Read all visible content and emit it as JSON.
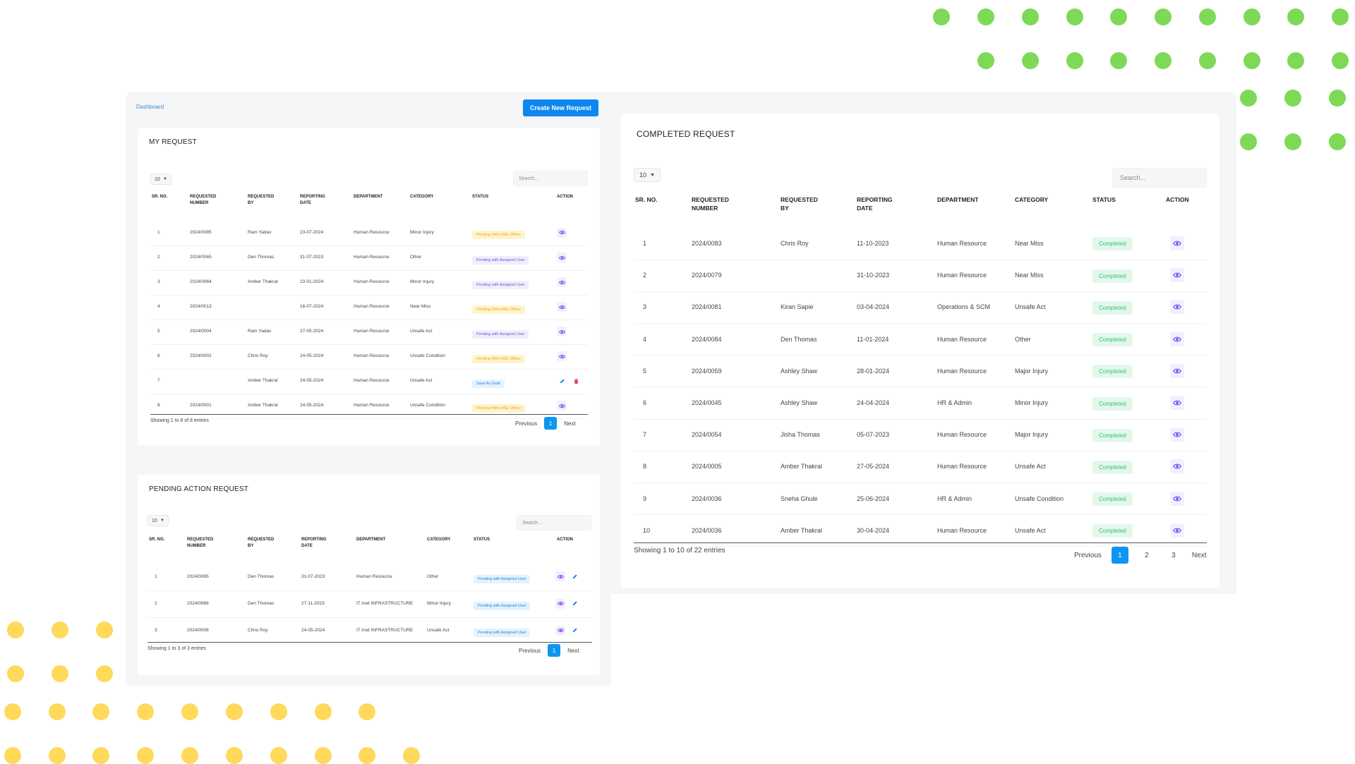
{
  "breadcrumb": "Dashboard",
  "create_button": "Create New Request",
  "colors": {
    "accent": "#0d86f0",
    "green_dot": "#7ed957",
    "yellow_dot": "#ffd95a"
  },
  "my_request": {
    "title": "MY REQUEST",
    "length": "10",
    "search_placeholder": "Search...",
    "columns": [
      "SR. NO.",
      "REQUESTED NUMBER",
      "REQUESTED BY",
      "REPORTING DATE",
      "DEPARTMENT",
      "CATEGORY",
      "STATUS",
      "ACTION"
    ],
    "rows": [
      {
        "sr": "1",
        "num": "2024/0085",
        "by": "Ram Yadav",
        "date": "23-07-2024",
        "dept": "Human Resource",
        "cat": "Minor Injury",
        "status": "Pending With HSE Officer",
        "stype": "hse",
        "actions": [
          "view"
        ]
      },
      {
        "sr": "2",
        "num": "2024/0065",
        "by": "Den Thomas",
        "date": "31-07-2023",
        "dept": "Human Resource",
        "cat": "Other",
        "status": "Pending with Assigned User",
        "stype": "assigned",
        "actions": [
          "view"
        ]
      },
      {
        "sr": "3",
        "num": "2024/0064",
        "by": "Amber Thakral",
        "date": "23-01-2024",
        "dept": "Human Resource",
        "cat": "Minor Injury",
        "status": "Pending with Assigned User",
        "stype": "assigned",
        "actions": [
          "view"
        ]
      },
      {
        "sr": "4",
        "num": "2024/0013",
        "by": "",
        "date": "16-07-2024",
        "dept": "Human Resource",
        "cat": "Near Miss",
        "status": "Pending With HSE Officer",
        "stype": "hse",
        "actions": [
          "view"
        ]
      },
      {
        "sr": "5",
        "num": "2024/0004",
        "by": "Ram Yadav",
        "date": "27-05-2024",
        "dept": "Human Resource",
        "cat": "Unsafe Act",
        "status": "Pending with Assigned User",
        "stype": "assigned",
        "actions": [
          "view"
        ]
      },
      {
        "sr": "6",
        "num": "2024/0002",
        "by": "Chris Roy",
        "date": "24-05-2024",
        "dept": "Human Resource",
        "cat": "Unsafe Condition",
        "status": "Pending With HSE Officer",
        "stype": "hse",
        "actions": [
          "view"
        ]
      },
      {
        "sr": "7",
        "num": "",
        "by": "Amber Thakral",
        "date": "24-05-2024",
        "dept": "Human Resource",
        "cat": "Unsafe Act",
        "status": "Save As Draft",
        "stype": "draft",
        "actions": [
          "edit",
          "delete"
        ]
      },
      {
        "sr": "8",
        "num": "2024/0001",
        "by": "Amber Thakral",
        "date": "24-05-2024",
        "dept": "Human Resource",
        "cat": "Unsafe Condition",
        "status": "Pending With HSE Officer",
        "stype": "hse",
        "actions": [
          "view"
        ]
      }
    ],
    "info": "Showing 1 to 8 of 8 entries",
    "prev": "Previous",
    "next": "Next",
    "pages": [
      "1"
    ]
  },
  "pending": {
    "title": "PENDING ACTION REQUEST",
    "length": "10",
    "search_placeholder": "Search...",
    "columns": [
      "SR. NO.",
      "REQUESTED NUMBER",
      "REQUESTED BY",
      "REPORTING DATE",
      "DEPARTMENT",
      "CATEGORY",
      "STATUS",
      "ACTION"
    ],
    "rows": [
      {
        "sr": "1",
        "num": "2024/0065",
        "by": "Den Thomas",
        "date": "31-07-2023",
        "dept": "Human Resource",
        "cat": "Other",
        "status": "Pending with Assigned User",
        "stype": "draft",
        "actions": [
          "view",
          "edit"
        ]
      },
      {
        "sr": "2",
        "num": "2024/0066",
        "by": "Den Thomas",
        "date": "27-11-2023",
        "dept": "IT And INFRASTRUCTURE",
        "cat": "Minor Injury",
        "status": "Pending with Assigned User",
        "stype": "draft",
        "actions": [
          "view",
          "edit"
        ]
      },
      {
        "sr": "3",
        "num": "2024/0008",
        "by": "Chris Roy",
        "date": "24-05-2024",
        "dept": "IT And INFRASTRUCTURE",
        "cat": "Unsafe Act",
        "status": "Pending with Assigned User",
        "stype": "draft",
        "actions": [
          "view",
          "edit"
        ]
      }
    ],
    "info": "Showing 1 to 3 of 3 entries",
    "prev": "Previous",
    "next": "Next",
    "pages": [
      "1"
    ]
  },
  "completed": {
    "title": "COMPLETED REQUEST",
    "length": "10",
    "search_placeholder": "Search...",
    "columns": [
      "SR. NO.",
      "REQUESTED NUMBER",
      "REQUESTED BY",
      "REPORTING DATE",
      "DEPARTMENT",
      "CATEGORY",
      "STATUS",
      "ACTION"
    ],
    "rows": [
      {
        "sr": "1",
        "num": "2024/0083",
        "by": "Chris Roy",
        "date": "11-10-2023",
        "dept": "Human Resource",
        "cat": "Near Miss",
        "status": "Completed",
        "stype": "completed",
        "actions": [
          "view"
        ]
      },
      {
        "sr": "2",
        "num": "2024/0079",
        "by": "",
        "date": "31-10-2023",
        "dept": "Human Resource",
        "cat": "Near Miss",
        "status": "Completed",
        "stype": "completed",
        "actions": [
          "view"
        ]
      },
      {
        "sr": "3",
        "num": "2024/0081",
        "by": "Kiran Sapie",
        "date": "03-04-2024",
        "dept": "Operations & SCM",
        "cat": "Unsafe Act",
        "status": "Completed",
        "stype": "completed",
        "actions": [
          "view"
        ]
      },
      {
        "sr": "4",
        "num": "2024/0084",
        "by": "Den Thomas",
        "date": "11-01-2024",
        "dept": "Human Resource",
        "cat": "Other",
        "status": "Completed",
        "stype": "completed",
        "actions": [
          "view"
        ]
      },
      {
        "sr": "5",
        "num": "2024/0059",
        "by": "Ashley Shaw",
        "date": "28-01-2024",
        "dept": "Human Resource",
        "cat": "Major Injury",
        "status": "Completed",
        "stype": "completed",
        "actions": [
          "view"
        ]
      },
      {
        "sr": "6",
        "num": "2024/0045",
        "by": "Ashley Shaw",
        "date": "24-04-2024",
        "dept": "HR & Admin",
        "cat": "Minor Injury",
        "status": "Completed",
        "stype": "completed",
        "actions": [
          "view"
        ]
      },
      {
        "sr": "7",
        "num": "2024/0054",
        "by": "Jisha Thomas",
        "date": "05-07-2023",
        "dept": "Human Resource",
        "cat": "Major Injury",
        "status": "Completed",
        "stype": "completed",
        "actions": [
          "view"
        ]
      },
      {
        "sr": "8",
        "num": "2024/0005",
        "by": "Amber Thakral",
        "date": "27-05-2024",
        "dept": "Human Resource",
        "cat": "Unsafe Act",
        "status": "Completed",
        "stype": "completed",
        "actions": [
          "view"
        ]
      },
      {
        "sr": "9",
        "num": "2024/0036",
        "by": "Sneha Ghule",
        "date": "25-06-2024",
        "dept": "HR & Admin",
        "cat": "Unsafe Condition",
        "status": "Completed",
        "stype": "completed",
        "actions": [
          "view"
        ]
      },
      {
        "sr": "10",
        "num": "2024/0036",
        "by": "Amber Thakral",
        "date": "30-04-2024",
        "dept": "Human Resource",
        "cat": "Unsafe Act",
        "status": "Completed",
        "stype": "completed",
        "actions": [
          "view"
        ]
      }
    ],
    "info": "Showing 1 to 10 of 22 entries",
    "prev": "Previous",
    "next": "Next",
    "pages": [
      "1",
      "2",
      "3"
    ]
  }
}
